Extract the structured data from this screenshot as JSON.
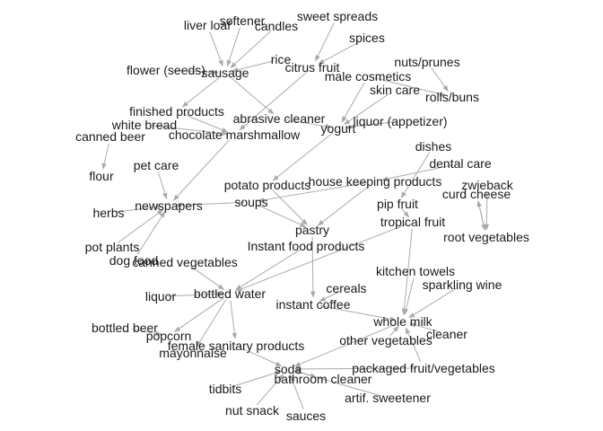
{
  "nodes": [
    {
      "id": "liver_loaf",
      "label": "liver loaf"
    },
    {
      "id": "softener",
      "label": "softener"
    },
    {
      "id": "candles",
      "label": "candles"
    },
    {
      "id": "sweet_spreads",
      "label": "sweet spreads"
    },
    {
      "id": "spices",
      "label": "spices"
    },
    {
      "id": "rice",
      "label": "rice"
    },
    {
      "id": "citrus_fruit",
      "label": "citrus fruit"
    },
    {
      "id": "flower_seeds",
      "label": "flower (seeds)"
    },
    {
      "id": "sausage",
      "label": "sausage"
    },
    {
      "id": "nuts_prunes",
      "label": "nuts/prunes"
    },
    {
      "id": "male_cosmetics",
      "label": "male cosmetics"
    },
    {
      "id": "skin_care",
      "label": "skin care"
    },
    {
      "id": "rolls_buns",
      "label": "rolls/buns"
    },
    {
      "id": "finished_products",
      "label": "finished products"
    },
    {
      "id": "white_bread",
      "label": "white bread"
    },
    {
      "id": "abrasive_cleaner",
      "label": "abrasive cleaner"
    },
    {
      "id": "liquor_appetizer",
      "label": "liquor (appetizer)"
    },
    {
      "id": "canned_beer",
      "label": "canned beer"
    },
    {
      "id": "chocolate_marshmallow",
      "label": "chocolate marshmallow"
    },
    {
      "id": "yogurt",
      "label": "yogurt"
    },
    {
      "id": "dishes",
      "label": "dishes"
    },
    {
      "id": "dental_care",
      "label": "dental care"
    },
    {
      "id": "pet_care",
      "label": "pet care"
    },
    {
      "id": "flour",
      "label": "flour"
    },
    {
      "id": "house_keeping_products",
      "label": "house keeping products"
    },
    {
      "id": "potato_products",
      "label": "potato products"
    },
    {
      "id": "zwieback",
      "label": "zwieback"
    },
    {
      "id": "curd_cheese",
      "label": "curd cheese"
    },
    {
      "id": "pip_fruit",
      "label": "pip fruit"
    },
    {
      "id": "soups",
      "label": "soups"
    },
    {
      "id": "newspapers",
      "label": "newspapers"
    },
    {
      "id": "herbs",
      "label": "herbs"
    },
    {
      "id": "tropical_fruit",
      "label": "tropical fruit"
    },
    {
      "id": "pastry",
      "label": "pastry"
    },
    {
      "id": "root_vegetables",
      "label": "root vegetables"
    },
    {
      "id": "instant_food_products",
      "label": "Instant food products"
    },
    {
      "id": "pot_plants",
      "label": "pot plants"
    },
    {
      "id": "dog_food",
      "label": "dog food"
    },
    {
      "id": "canned_vegetables",
      "label": "canned vegetables"
    },
    {
      "id": "kitchen_towels",
      "label": "kitchen towels"
    },
    {
      "id": "sparkling_wine",
      "label": "sparkling wine"
    },
    {
      "id": "cereals",
      "label": "cereals"
    },
    {
      "id": "liquor",
      "label": "liquor"
    },
    {
      "id": "bottled_water",
      "label": "bottled water"
    },
    {
      "id": "instant_coffee",
      "label": "instant coffee"
    },
    {
      "id": "bottled_beer",
      "label": "bottled beer"
    },
    {
      "id": "whole_milk",
      "label": "whole milk"
    },
    {
      "id": "popcorn",
      "label": "popcorn"
    },
    {
      "id": "cleaner",
      "label": "cleaner"
    },
    {
      "id": "other_vegetables",
      "label": "other vegetables"
    },
    {
      "id": "female_sanitary_products",
      "label": "female sanitary products"
    },
    {
      "id": "mayonnaise",
      "label": "mayonnaise"
    },
    {
      "id": "soda",
      "label": "soda"
    },
    {
      "id": "packaged_fruit_vegetables",
      "label": "packaged fruit/vegetables"
    },
    {
      "id": "bathroom_cleaner",
      "label": "bathroom cleaner"
    },
    {
      "id": "tidbits",
      "label": "tidbits"
    },
    {
      "id": "artif_sweetener",
      "label": "artif. sweetener"
    },
    {
      "id": "nut_snack",
      "label": "nut snack"
    },
    {
      "id": "sauces",
      "label": "sauces"
    }
  ],
  "edges": [
    [
      "liver_loaf",
      "sausage"
    ],
    [
      "softener",
      "sausage"
    ],
    [
      "candles",
      "sausage"
    ],
    [
      "flower_seeds",
      "sausage"
    ],
    [
      "rice",
      "sausage"
    ],
    [
      "sweet_spreads",
      "citrus_fruit"
    ],
    [
      "spices",
      "citrus_fruit"
    ],
    [
      "nuts_prunes",
      "rolls_buns"
    ],
    [
      "male_cosmetics",
      "rolls_buns"
    ],
    [
      "sausage",
      "finished_products"
    ],
    [
      "sausage",
      "abrasive_cleaner"
    ],
    [
      "abrasive_cleaner",
      "yogurt"
    ],
    [
      "skin_care",
      "yogurt"
    ],
    [
      "male_cosmetics",
      "yogurt"
    ],
    [
      "liquor_appetizer",
      "yogurt"
    ],
    [
      "finished_products",
      "chocolate_marshmallow"
    ],
    [
      "white_bread",
      "chocolate_marshmallow"
    ],
    [
      "citrus_fruit",
      "chocolate_marshmallow"
    ],
    [
      "canned_beer",
      "flour"
    ],
    [
      "yogurt",
      "potato_products"
    ],
    [
      "chocolate_marshmallow",
      "newspapers"
    ],
    [
      "pet_care",
      "newspapers"
    ],
    [
      "herbs",
      "newspapers"
    ],
    [
      "pot_plants",
      "newspapers"
    ],
    [
      "dog_food",
      "newspapers"
    ],
    [
      "soups",
      "newspapers"
    ],
    [
      "dental_care",
      "house_keeping_products"
    ],
    [
      "dishes",
      "pip_fruit"
    ],
    [
      "zwieback",
      "root_vegetables"
    ],
    [
      "curd_cheese",
      "root_vegetables"
    ],
    [
      "root_vegetables",
      "curd_cheese"
    ],
    [
      "house_keeping_products",
      "soups"
    ],
    [
      "potato_products",
      "pastry"
    ],
    [
      "soups",
      "pastry"
    ],
    [
      "house_keeping_products",
      "pastry"
    ],
    [
      "pip_fruit",
      "tropical_fruit"
    ],
    [
      "tropical_fruit",
      "whole_milk"
    ],
    [
      "kitchen_towels",
      "whole_milk"
    ],
    [
      "sparkling_wine",
      "whole_milk"
    ],
    [
      "cleaner",
      "whole_milk"
    ],
    [
      "other_vegetables",
      "whole_milk"
    ],
    [
      "packaged_fruit_vegetables",
      "whole_milk"
    ],
    [
      "pastry",
      "instant_coffee"
    ],
    [
      "cereals",
      "instant_coffee"
    ],
    [
      "instant_food_products",
      "bottled_water"
    ],
    [
      "canned_vegetables",
      "bottled_water"
    ],
    [
      "liquor",
      "bottled_water"
    ],
    [
      "tropical_fruit",
      "bottled_water"
    ],
    [
      "bottled_water",
      "popcorn"
    ],
    [
      "bottled_beer",
      "popcorn"
    ],
    [
      "instant_coffee",
      "whole_milk"
    ],
    [
      "whole_milk",
      "soda"
    ],
    [
      "female_sanitary_products",
      "soda"
    ],
    [
      "bottled_water",
      "female_sanitary_products"
    ],
    [
      "bottled_water",
      "mayonnaise"
    ],
    [
      "tidbits",
      "soda"
    ],
    [
      "nut_snack",
      "soda"
    ],
    [
      "sauces",
      "soda"
    ],
    [
      "artif_sweetener",
      "soda"
    ],
    [
      "bathroom_cleaner",
      "soda"
    ],
    [
      "soda",
      "bathroom_cleaner"
    ],
    [
      "packaged_fruit_vegetables",
      "soda"
    ]
  ],
  "colors": {
    "edge": "#aaaaaa",
    "label": "#1a1a1a",
    "background": "#ffffff"
  }
}
